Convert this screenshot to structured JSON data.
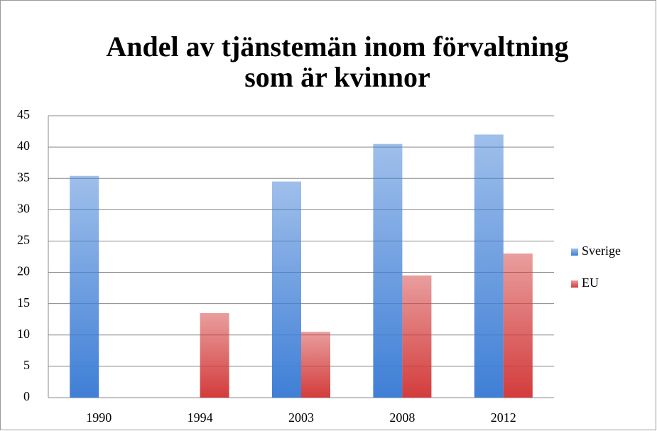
{
  "chart_data": {
    "type": "bar",
    "title": [
      "Andel av tjänstemän inom förvaltning",
      "som är kvinnor"
    ],
    "categories": [
      "1990",
      "1994",
      "2003",
      "2008",
      "2012"
    ],
    "series": [
      {
        "name": "Sverige",
        "color": "#3f7fd6",
        "values": [
          35.4,
          null,
          34.5,
          40.5,
          42
        ]
      },
      {
        "name": "EU",
        "color": "#d33c3c",
        "values": [
          null,
          13.5,
          10.5,
          19.5,
          23
        ]
      }
    ],
    "ylim": [
      0,
      45
    ],
    "yticks": [
      0,
      5,
      10,
      15,
      20,
      25,
      30,
      35,
      40,
      45
    ],
    "grid": true,
    "legend": "right"
  }
}
